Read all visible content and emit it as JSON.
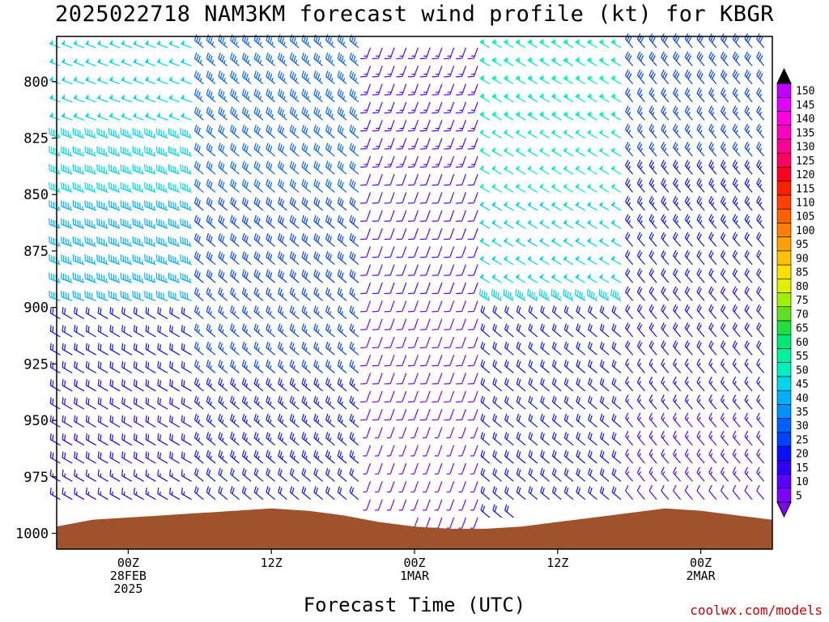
{
  "page": {
    "title": "2025022718 NAM3KM forecast wind profile (kt) for KBGR",
    "credit": "coolwx.com/models"
  },
  "chart_data": {
    "type": "wind-barb-time-height",
    "title": "2025022718 NAM3KM forecast wind profile (kt) for KBGR",
    "xlabel": "Forecast Time (UTC)",
    "ylabel": "",
    "y_axis": {
      "units": "hPa",
      "ticks": [
        800,
        825,
        850,
        875,
        900,
        925,
        950,
        975,
        1000
      ],
      "range": [
        780,
        1007
      ]
    },
    "x_axis": {
      "units": "hours from 2025-02-27 18Z",
      "range": [
        0,
        60
      ],
      "tick_labels": [
        {
          "hour": 6,
          "label": "00Z",
          "sub1": "28FEB",
          "sub2": "2025"
        },
        {
          "hour": 18,
          "label": "12Z",
          "sub1": "",
          "sub2": ""
        },
        {
          "hour": 30,
          "label": "00Z",
          "sub1": "1MAR",
          "sub2": ""
        },
        {
          "hour": 42,
          "label": "12Z",
          "sub1": "",
          "sub2": ""
        },
        {
          "hour": 54,
          "label": "00Z",
          "sub1": "2MAR",
          "sub2": ""
        }
      ]
    },
    "surface_pressure": {
      "hours": [
        0,
        3,
        6,
        9,
        12,
        15,
        18,
        21,
        24,
        27,
        30,
        33,
        36,
        39,
        42,
        45,
        48,
        51,
        54,
        57,
        60
      ],
      "hPa": [
        997,
        994,
        993,
        992,
        991,
        990,
        989,
        990,
        992,
        995,
        997,
        998,
        998,
        997,
        995,
        993,
        991,
        989,
        990,
        992,
        994
      ]
    },
    "wind": {
      "direction_regimes": [
        {
          "hours": [
            0,
            12
          ],
          "levels": "upper",
          "direction_deg": 290,
          "speed_kt": [
            35,
            50
          ]
        },
        {
          "hours": [
            0,
            12
          ],
          "levels": "lower",
          "direction_deg": 300,
          "speed_kt": [
            15,
            30
          ]
        },
        {
          "hours": [
            12,
            26
          ],
          "levels": "all",
          "direction_deg": 310,
          "speed_kt": [
            20,
            35
          ]
        },
        {
          "hours": [
            26,
            36
          ],
          "levels": "low",
          "direction_deg": 200,
          "speed_kt": [
            5,
            15
          ]
        },
        {
          "hours": [
            36,
            48
          ],
          "levels": "upper",
          "direction_deg": 300,
          "speed_kt": [
            40,
            55
          ]
        },
        {
          "hours": [
            48,
            60
          ],
          "levels": "all",
          "direction_deg": 320,
          "speed_kt": [
            10,
            30
          ]
        }
      ]
    },
    "colorbar": {
      "labels": [
        5,
        10,
        15,
        20,
        25,
        30,
        35,
        40,
        45,
        50,
        55,
        60,
        65,
        70,
        75,
        80,
        85,
        90,
        95,
        100,
        105,
        110,
        115,
        120,
        125,
        130,
        135,
        140,
        145,
        150
      ],
      "colors": [
        "#7f00ff",
        "#5a00ff",
        "#2d00ff",
        "#0a10ff",
        "#0040ff",
        "#0060ff",
        "#0090ff",
        "#00b0ff",
        "#00d8e8",
        "#00f0c0",
        "#00f0a0",
        "#00e878",
        "#20e040",
        "#60e020",
        "#a0f000",
        "#e0f000",
        "#ffe000",
        "#ffc000",
        "#ffa000",
        "#ff8000",
        "#ff6000",
        "#ff4000",
        "#ff2000",
        "#ff0020",
        "#ff0060",
        "#ff0090",
        "#ff00c0",
        "#ff00e0",
        "#e000ff",
        "#c000ff"
      ],
      "min_arrow_color": "#8000ff",
      "max_arrow_color": "#000000"
    },
    "terrain_color": "#a0522d",
    "grid": false
  }
}
